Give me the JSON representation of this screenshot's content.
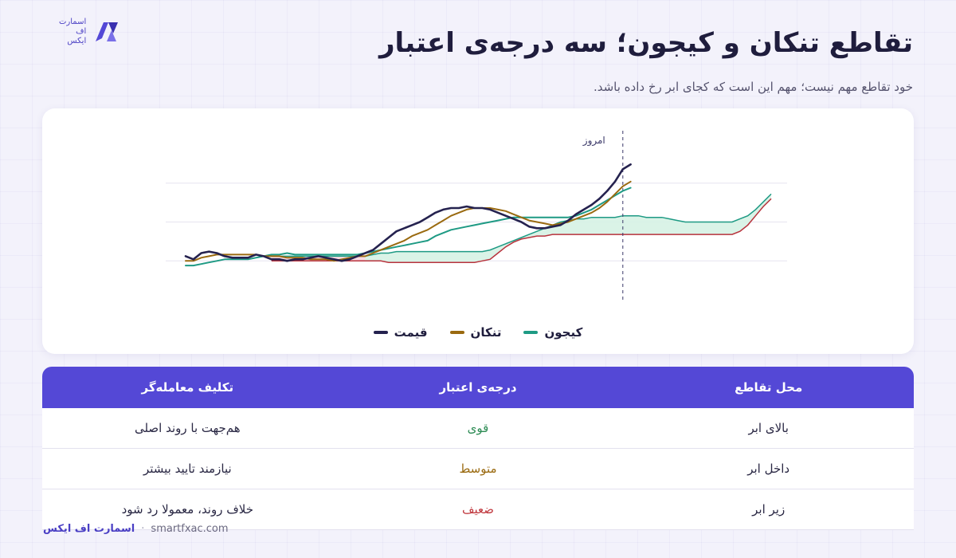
{
  "brand": {
    "logo_lines": [
      "اسمارت",
      "اف",
      "ایکس"
    ],
    "footer_brand": "اسمارت اف ایکس",
    "footer_url": "smartfxac.com",
    "footer_sep": "·"
  },
  "title": "تقاطع تنکان و کیجون؛ سه درجه‌ی اعتبار",
  "subtitle": "خود تقاطع مهم نیست؛ مهم این است که کجای ابر رخ داده باشد.",
  "colors": {
    "price": "#25224f",
    "tenkan": "#9a6a10",
    "kijun": "#1e9a84",
    "cloud_bull": "#d6f2e4",
    "cloud_bear": "#f8d7e0",
    "span_b": "#b8323c",
    "accent": "#5448d6"
  },
  "chart_data": {
    "type": "line",
    "today_label": "امروز",
    "today_index": 56,
    "ylim": [
      0,
      100
    ],
    "series": [
      {
        "name": "قیمت",
        "key": "price",
        "values": [
          28,
          26,
          30,
          31,
          30,
          28,
          27,
          27,
          27,
          29,
          28,
          26,
          26,
          25,
          26,
          26,
          27,
          28,
          27,
          26,
          25,
          26,
          28,
          30,
          32,
          36,
          40,
          44,
          46,
          48,
          50,
          53,
          56,
          58,
          59,
          59,
          60,
          59,
          59,
          58,
          56,
          54,
          52,
          50,
          47,
          46,
          46,
          47,
          48,
          51,
          55,
          58,
          61,
          65,
          70,
          76,
          84,
          87,
          null,
          null,
          null,
          null,
          null,
          null,
          null,
          null,
          null,
          null,
          null,
          null,
          null,
          null,
          null,
          null,
          null,
          null
        ]
      },
      {
        "name": "تنکان",
        "key": "tenkan",
        "values": [
          25,
          25,
          27,
          28,
          29,
          29,
          29,
          29,
          29,
          29,
          28,
          28,
          28,
          27,
          27,
          27,
          26,
          26,
          26,
          25,
          26,
          27,
          28,
          28,
          30,
          32,
          34,
          36,
          38,
          41,
          43,
          45,
          48,
          51,
          54,
          56,
          58,
          59,
          59,
          59,
          58,
          57,
          55,
          53,
          51,
          50,
          49,
          48,
          49,
          50,
          52,
          54,
          56,
          59,
          63,
          68,
          73,
          76,
          null,
          null,
          null,
          null,
          null,
          null,
          null,
          null,
          null,
          null,
          null,
          null,
          null,
          null,
          null,
          null,
          null,
          null
        ]
      },
      {
        "name": "کیجون",
        "key": "kijun",
        "values": [
          22,
          22,
          23,
          24,
          25,
          26,
          26,
          26,
          26,
          27,
          28,
          29,
          29,
          30,
          29,
          29,
          29,
          29,
          29,
          29,
          29,
          29,
          29,
          30,
          31,
          32,
          33,
          34,
          35,
          36,
          37,
          38,
          41,
          43,
          45,
          46,
          47,
          48,
          49,
          50,
          51,
          52,
          53,
          53,
          53,
          53,
          53,
          53,
          53,
          53,
          54,
          56,
          58,
          61,
          64,
          67,
          70,
          72,
          null,
          null,
          null,
          null,
          null,
          null,
          null,
          null,
          null,
          null,
          null,
          null,
          null,
          null,
          null,
          null,
          null,
          null
        ]
      }
    ],
    "cloud": {
      "span_a": [
        null,
        null,
        null,
        null,
        null,
        null,
        null,
        null,
        null,
        null,
        null,
        28,
        28,
        28,
        28,
        28,
        28,
        28,
        28,
        28,
        28,
        28,
        28,
        28,
        29,
        30,
        30,
        31,
        31,
        31,
        31,
        31,
        31,
        31,
        31,
        31,
        31,
        31,
        31,
        32,
        34,
        36,
        38,
        40,
        42,
        44,
        46,
        48,
        50,
        51,
        52,
        52,
        53,
        53,
        53,
        53,
        54,
        54,
        54,
        53,
        53,
        53,
        52,
        51,
        50,
        50,
        50,
        50,
        50,
        50,
        50,
        52,
        54,
        58,
        63,
        68
      ],
      "span_b": [
        null,
        null,
        null,
        null,
        null,
        null,
        null,
        null,
        null,
        null,
        null,
        25,
        25,
        25,
        25,
        25,
        25,
        25,
        25,
        25,
        25,
        25,
        25,
        25,
        25,
        25,
        24,
        24,
        24,
        24,
        24,
        24,
        24,
        24,
        24,
        24,
        24,
        24,
        25,
        26,
        30,
        34,
        37,
        39,
        40,
        41,
        41,
        42,
        42,
        42,
        42,
        42,
        42,
        42,
        42,
        42,
        42,
        42,
        42,
        42,
        42,
        42,
        42,
        42,
        42,
        42,
        42,
        42,
        42,
        42,
        42,
        44,
        48,
        54,
        60,
        65
      ],
      "bear_range": [
        11,
        23
      ]
    }
  },
  "table": {
    "headers": [
      "محل تقاطع",
      "درجه‌ی اعتبار",
      "تکلیف معامله‌گر"
    ],
    "rows": [
      {
        "location": "بالای ابر",
        "grade": "قوی",
        "grade_class": "strong",
        "action": "هم‌جهت با روند اصلی"
      },
      {
        "location": "داخل ابر",
        "grade": "متوسط",
        "grade_class": "medium",
        "action": "نیازمند تایید بیشتر"
      },
      {
        "location": "زیر ابر",
        "grade": "ضعیف",
        "grade_class": "weak",
        "action": "خلاف روند، معمولا رد شود"
      }
    ]
  }
}
